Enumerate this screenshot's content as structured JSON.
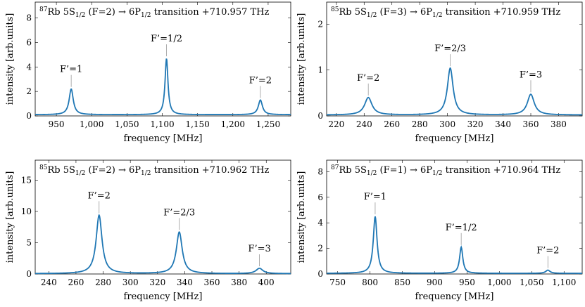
{
  "chart_data": [
    {
      "type": "line",
      "title": {
        "iso": "87",
        "el": "Rb 5S",
        "sub1": "1/2",
        "mid": " (F=2) → 6P",
        "sub2": "1/2",
        "tail": " transition +710.957 THz"
      },
      "xlabel": "frequency [MHz]",
      "ylabel": "intensity [arb.units]",
      "xlim": [
        920,
        1282
      ],
      "ylim": [
        0,
        9.3
      ],
      "xticks": [
        950,
        1000,
        1050,
        1100,
        1150,
        1200,
        1250
      ],
      "xtick_labels": [
        "950",
        "1,000",
        "1,050",
        "1,100",
        "1,150",
        "1,200",
        "1,250"
      ],
      "yticks": [
        0,
        2,
        4,
        6,
        8
      ],
      "baseline": 0.1,
      "peaks": [
        {
          "x": 971,
          "y": 2.2,
          "w": 3.5,
          "label": "F’=1"
        },
        {
          "x": 1106,
          "y": 4.7,
          "w": 2.5,
          "label": "F’=1/2"
        },
        {
          "x": 1239,
          "y": 1.3,
          "w": 3.5,
          "label": "F’=2"
        }
      ],
      "color": "#1f77b4"
    },
    {
      "type": "line",
      "title": {
        "iso": "85",
        "el": "Rb 5S",
        "sub1": "1/2",
        "mid": " (F=3) → 6P",
        "sub2": "1/2",
        "tail": " transition +710.959 THz"
      },
      "xlabel": "frequency [MHz]",
      "ylabel": "intensity [arb.units]",
      "xlim": [
        213,
        397
      ],
      "ylim": [
        0,
        2.48
      ],
      "xticks": [
        220,
        240,
        260,
        280,
        300,
        320,
        340,
        360,
        380
      ],
      "xtick_labels": [
        "220",
        "240",
        "260",
        "280",
        "300",
        "320",
        "340",
        "360",
        "380"
      ],
      "yticks": [
        0,
        1,
        2
      ],
      "baseline": 0.02,
      "peaks": [
        {
          "x": 243,
          "y": 0.4,
          "w": 3.2,
          "label": "F’=2"
        },
        {
          "x": 302,
          "y": 1.04,
          "w": 2.5,
          "label": "F’=2/3"
        },
        {
          "x": 360,
          "y": 0.47,
          "w": 3.0,
          "label": "F’=3"
        }
      ],
      "color": "#1f77b4"
    },
    {
      "type": "line",
      "title": {
        "iso": "85",
        "el": "Rb 5S",
        "sub1": "1/2",
        "mid": " (F=2) → 6P",
        "sub2": "1/2",
        "tail": " transition +710.962 THz"
      },
      "xlabel": "frequency [MHz]",
      "ylabel": "intensity [arb.units]",
      "xlim": [
        230,
        418
      ],
      "ylim": [
        0,
        18.2
      ],
      "xticks": [
        240,
        260,
        280,
        300,
        320,
        340,
        360,
        380,
        400
      ],
      "xtick_labels": [
        "240",
        "260",
        "280",
        "300",
        "320",
        "340",
        "360",
        "380",
        "400"
      ],
      "yticks": [
        0,
        5,
        10,
        15
      ],
      "baseline": 0.05,
      "peaks": [
        {
          "x": 277,
          "y": 9.4,
          "w": 2.6,
          "label": "F’=2"
        },
        {
          "x": 336,
          "y": 6.7,
          "w": 2.6,
          "label": "F’=2/3"
        },
        {
          "x": 395,
          "y": 0.9,
          "w": 3.0,
          "label": "F’=3"
        }
      ],
      "color": "#1f77b4"
    },
    {
      "type": "line",
      "title": {
        "iso": "87",
        "el": "Rb 5S",
        "sub1": "1/2",
        "mid": " (F=1) → 6P",
        "sub2": "1/2",
        "tail": " transition +710.964 THz"
      },
      "xlabel": "frequency [MHz]",
      "ylabel": "intensity [arb.units]",
      "xlim": [
        733,
        1128
      ],
      "ylim": [
        0,
        8.9
      ],
      "xticks": [
        750,
        800,
        850,
        900,
        950,
        1000,
        1050,
        1100
      ],
      "xtick_labels": [
        "750",
        "800",
        "850",
        "900",
        "950",
        "1,000",
        "1,050",
        "1,100"
      ],
      "yticks": [
        0,
        2,
        4,
        6,
        8
      ],
      "baseline": 0.05,
      "peaks": [
        {
          "x": 808,
          "y": 4.5,
          "w": 3.5,
          "label": "F’=1"
        },
        {
          "x": 941,
          "y": 2.1,
          "w": 3.0,
          "label": "F’=1/2"
        },
        {
          "x": 1075,
          "y": 0.3,
          "w": 4.0,
          "label": "F’=2"
        }
      ],
      "color": "#1f77b4"
    }
  ]
}
